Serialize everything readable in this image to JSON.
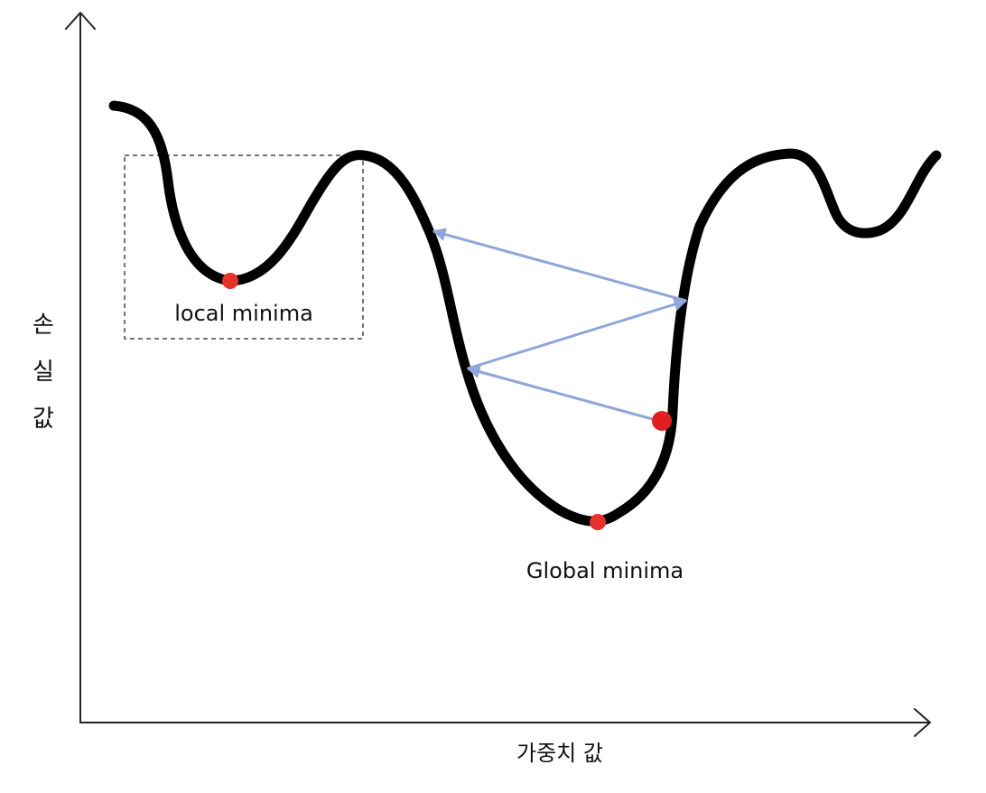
{
  "axes": {
    "x_label": "가중치 값",
    "y_label": [
      "손",
      "실",
      "값"
    ]
  },
  "annotations": {
    "local_label": "local minima",
    "global_label": "Global minima"
  },
  "colors": {
    "curve": "#000000",
    "axis": "#222222",
    "minima_point": "#e5322b",
    "current_point": "#e02020",
    "gradient_arrow": "#8fa6d8",
    "box": "#777777"
  }
}
